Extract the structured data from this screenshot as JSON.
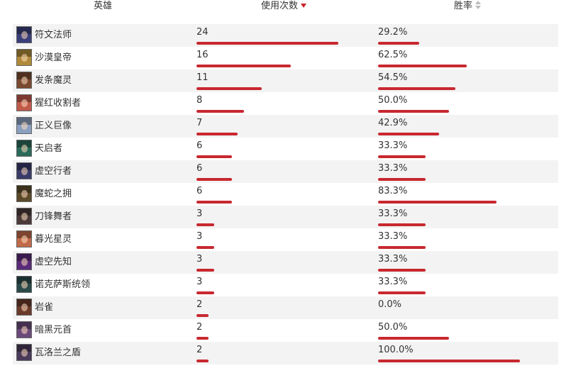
{
  "header": {
    "hero": "英雄",
    "usage": "使用次数",
    "winrate": "胜率"
  },
  "colors": {
    "bar": "#c8282f",
    "sort_active": "#c8232c",
    "row_stripe": "#f3f3f3"
  },
  "rows": [
    {
      "name": "符文法师",
      "usage": "24",
      "usage_value": 24,
      "winrate": "29.2%",
      "winrate_value": 29.2,
      "avatar_color": "#3a3f7a"
    },
    {
      "name": "沙漠皇帝",
      "usage": "16",
      "usage_value": 16,
      "winrate": "62.5%",
      "winrate_value": 62.5,
      "avatar_color": "#b08a3a"
    },
    {
      "name": "发条魔灵",
      "usage": "11",
      "usage_value": 11,
      "winrate": "54.5%",
      "winrate_value": 54.5,
      "avatar_color": "#7a4a30"
    },
    {
      "name": "猩红收割者",
      "usage": "8",
      "usage_value": 8,
      "winrate": "50.0%",
      "winrate_value": 50.0,
      "avatar_color": "#c05a4a"
    },
    {
      "name": "正义巨像",
      "usage": "7",
      "usage_value": 7,
      "winrate": "42.9%",
      "winrate_value": 42.9,
      "avatar_color": "#8aa0c0"
    },
    {
      "name": "天启者",
      "usage": "6",
      "usage_value": 6,
      "winrate": "33.3%",
      "winrate_value": 33.3,
      "avatar_color": "#2a6a5a"
    },
    {
      "name": "虚空行者",
      "usage": "6",
      "usage_value": 6,
      "winrate": "33.3%",
      "winrate_value": 33.3,
      "avatar_color": "#3a3a6a"
    },
    {
      "name": "魔蛇之拥",
      "usage": "6",
      "usage_value": 6,
      "winrate": "83.3%",
      "winrate_value": 83.3,
      "avatar_color": "#5a4a2a"
    },
    {
      "name": "刀锋舞者",
      "usage": "3",
      "usage_value": 3,
      "winrate": "33.3%",
      "winrate_value": 33.3,
      "avatar_color": "#4a3a3a"
    },
    {
      "name": "暮光星灵",
      "usage": "3",
      "usage_value": 3,
      "winrate": "33.3%",
      "winrate_value": 33.3,
      "avatar_color": "#c06a4a"
    },
    {
      "name": "虚空先知",
      "usage": "3",
      "usage_value": 3,
      "winrate": "33.3%",
      "winrate_value": 33.3,
      "avatar_color": "#5a2a7a"
    },
    {
      "name": "诺克萨斯统领",
      "usage": "3",
      "usage_value": 3,
      "winrate": "33.3%",
      "winrate_value": 33.3,
      "avatar_color": "#2a4a4a"
    },
    {
      "name": "岩雀",
      "usage": "2",
      "usage_value": 2,
      "winrate": "0.0%",
      "winrate_value": 0.0,
      "avatar_color": "#6a3a2a"
    },
    {
      "name": "暗黑元首",
      "usage": "2",
      "usage_value": 2,
      "winrate": "50.0%",
      "winrate_value": 50.0,
      "avatar_color": "#6a4a7a"
    },
    {
      "name": "瓦洛兰之盾",
      "usage": "2",
      "usage_value": 2,
      "winrate": "100.0%",
      "winrate_value": 100.0,
      "avatar_color": "#4a3a5a"
    }
  ]
}
